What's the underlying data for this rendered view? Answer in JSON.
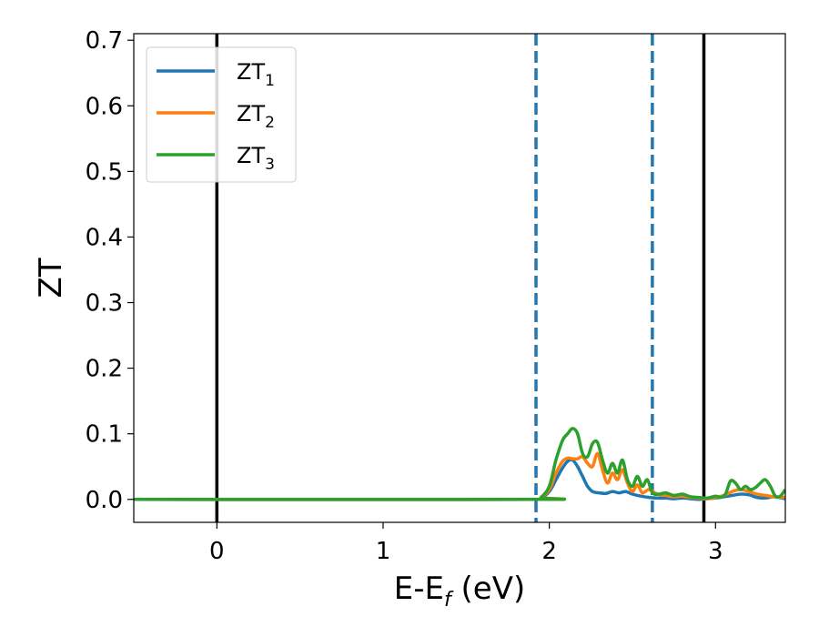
{
  "chart_data": {
    "type": "line",
    "xlabel": "E-E",
    "xlabel_sub": "f",
    "xlabel_unit": " (eV)",
    "ylabel": "ZT",
    "xlim": [
      -0.5,
      3.42
    ],
    "ylim": [
      -0.035,
      0.71
    ],
    "xticks": [
      0,
      1,
      2,
      3
    ],
    "xtick_labels": [
      "0",
      "1",
      "2",
      "3"
    ],
    "yticks": [
      0.0,
      0.1,
      0.2,
      0.3,
      0.4,
      0.5,
      0.6,
      0.7
    ],
    "ytick_labels": [
      "0.0",
      "0.1",
      "0.2",
      "0.3",
      "0.4",
      "0.5",
      "0.6",
      "0.7"
    ],
    "grid": false,
    "legend_position": "top-left",
    "vlines": [
      {
        "x": 0.0,
        "style": "solid",
        "color": "#000000"
      },
      {
        "x": 1.92,
        "style": "dashed",
        "color": "#1f77b4"
      },
      {
        "x": 2.62,
        "style": "dashed",
        "color": "#1f77b4"
      },
      {
        "x": 2.93,
        "style": "solid",
        "color": "#000000"
      }
    ],
    "series": [
      {
        "name": "ZT",
        "sub": "1",
        "color": "#1f77b4",
        "x": [
          -0.5,
          1.9,
          1.95,
          2.0,
          2.04,
          2.08,
          2.11,
          2.14,
          2.17,
          2.2,
          2.23,
          2.26,
          2.3,
          2.34,
          2.38,
          2.42,
          2.46,
          2.5,
          2.55,
          2.6,
          2.65,
          2.7,
          2.75,
          2.8,
          2.85,
          2.9,
          2.95,
          3.0,
          3.05,
          3.1,
          3.15,
          3.2,
          3.25,
          3.3,
          3.35,
          3.42
        ],
        "y": [
          0.0,
          0.0,
          0.002,
          0.012,
          0.03,
          0.048,
          0.058,
          0.06,
          0.05,
          0.035,
          0.02,
          0.012,
          0.01,
          0.009,
          0.012,
          0.01,
          0.012,
          0.008,
          0.005,
          0.003,
          0.002,
          0.002,
          0.001,
          0.002,
          0.001,
          0.0,
          0.001,
          0.002,
          0.004,
          0.006,
          0.008,
          0.007,
          0.003,
          0.002,
          0.004,
          0.001
        ]
      },
      {
        "name": "ZT",
        "sub": "2",
        "color": "#ff7f0e",
        "x": [
          -0.5,
          1.9,
          1.95,
          2.0,
          2.04,
          2.08,
          2.11,
          2.14,
          2.17,
          2.2,
          2.23,
          2.26,
          2.29,
          2.32,
          2.35,
          2.38,
          2.41,
          2.44,
          2.47,
          2.5,
          2.53,
          2.56,
          2.6,
          2.65,
          2.7,
          2.75,
          2.8,
          2.85,
          2.9,
          2.95,
          3.0,
          3.05,
          3.1,
          3.15,
          3.2,
          3.25,
          3.3,
          3.35,
          3.42
        ],
        "y": [
          0.0,
          0.0,
          0.003,
          0.015,
          0.04,
          0.058,
          0.063,
          0.062,
          0.062,
          0.065,
          0.055,
          0.05,
          0.07,
          0.045,
          0.025,
          0.04,
          0.03,
          0.045,
          0.025,
          0.012,
          0.022,
          0.01,
          0.015,
          0.008,
          0.006,
          0.004,
          0.005,
          0.003,
          0.002,
          0.001,
          0.003,
          0.006,
          0.012,
          0.015,
          0.012,
          0.008,
          0.006,
          0.004,
          0.003
        ]
      },
      {
        "name": "ZT",
        "sub": "3",
        "color": "#2ca02c",
        "x": [
          -0.5,
          1.9,
          1.95,
          2.0,
          2.04,
          2.08,
          2.11,
          2.14,
          2.17,
          2.2,
          2.23,
          2.26,
          2.29,
          2.32,
          2.35,
          2.38,
          2.41,
          2.44,
          2.47,
          2.5,
          2.53,
          2.56,
          2.59,
          2.62,
          2.66,
          2.7,
          2.75,
          2.8,
          2.85,
          2.9,
          2.95,
          3.0,
          3.03,
          3.06,
          3.09,
          3.12,
          3.15,
          3.18,
          3.21,
          3.24,
          3.27,
          3.3,
          3.33,
          3.36,
          3.39,
          3.42
        ],
        "y": [
          0.0,
          0.0,
          0.003,
          0.02,
          0.06,
          0.09,
          0.1,
          0.108,
          0.1,
          0.07,
          0.065,
          0.085,
          0.087,
          0.06,
          0.04,
          0.055,
          0.04,
          0.06,
          0.03,
          0.02,
          0.035,
          0.02,
          0.03,
          0.01,
          0.008,
          0.01,
          0.006,
          0.008,
          0.004,
          0.003,
          0.002,
          0.005,
          0.003,
          0.008,
          0.028,
          0.025,
          0.015,
          0.02,
          0.015,
          0.018,
          0.025,
          0.03,
          0.02,
          0.005,
          0.005,
          0.015
        ]
      }
    ]
  }
}
